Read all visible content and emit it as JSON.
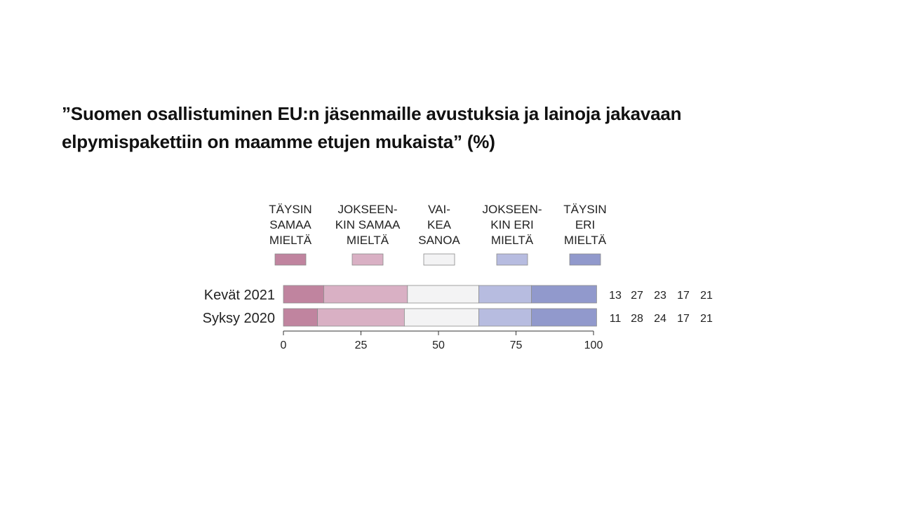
{
  "title_lines": [
    "”Suomen osallistuminen EU:n jäsenmaille avustuksia ja lainoja jakavaan",
    "elpymispakettiin on maamme etujen mukaista” (%)"
  ],
  "chart_data": {
    "type": "bar",
    "orientation": "horizontal",
    "stacked": true,
    "categories": [
      "Kevät 2021",
      "Syksy 2020"
    ],
    "series": [
      {
        "name": "TÄYSIN SAMAA MIELTÄ",
        "legend_lines": [
          "TÄYSIN",
          "SAMAA",
          "MIELTÄ"
        ],
        "color": "#c0849f",
        "values": [
          13,
          11
        ]
      },
      {
        "name": "JOKSEEN-KIN SAMAA MIELTÄ",
        "legend_lines": [
          "JOKSEEN-",
          "KIN SAMAA",
          "MIELTÄ"
        ],
        "color": "#d9b0c4",
        "values": [
          27,
          28
        ]
      },
      {
        "name": "VAI-KEA SANOA",
        "legend_lines": [
          "VAI-",
          "KEA",
          "SANOA"
        ],
        "color": "#f3f3f4",
        "values": [
          23,
          24
        ]
      },
      {
        "name": "JOKSEEN-KIN ERI MIELTÄ",
        "legend_lines": [
          "JOKSEEN-",
          "KIN ERI",
          "MIELTÄ"
        ],
        "color": "#b7bce0",
        "values": [
          17,
          17
        ]
      },
      {
        "name": "TÄYSIN ERI MIELTÄ",
        "legend_lines": [
          "TÄYSIN",
          "ERI",
          "MIELTÄ"
        ],
        "color": "#9199cc",
        "values": [
          21,
          21
        ]
      }
    ],
    "x_ticks": [
      0,
      25,
      50,
      75,
      100
    ],
    "xlim": [
      0,
      100
    ],
    "xlabel": "",
    "ylabel": "",
    "legend_position": "top",
    "value_labels_position": "right",
    "grid": false
  }
}
